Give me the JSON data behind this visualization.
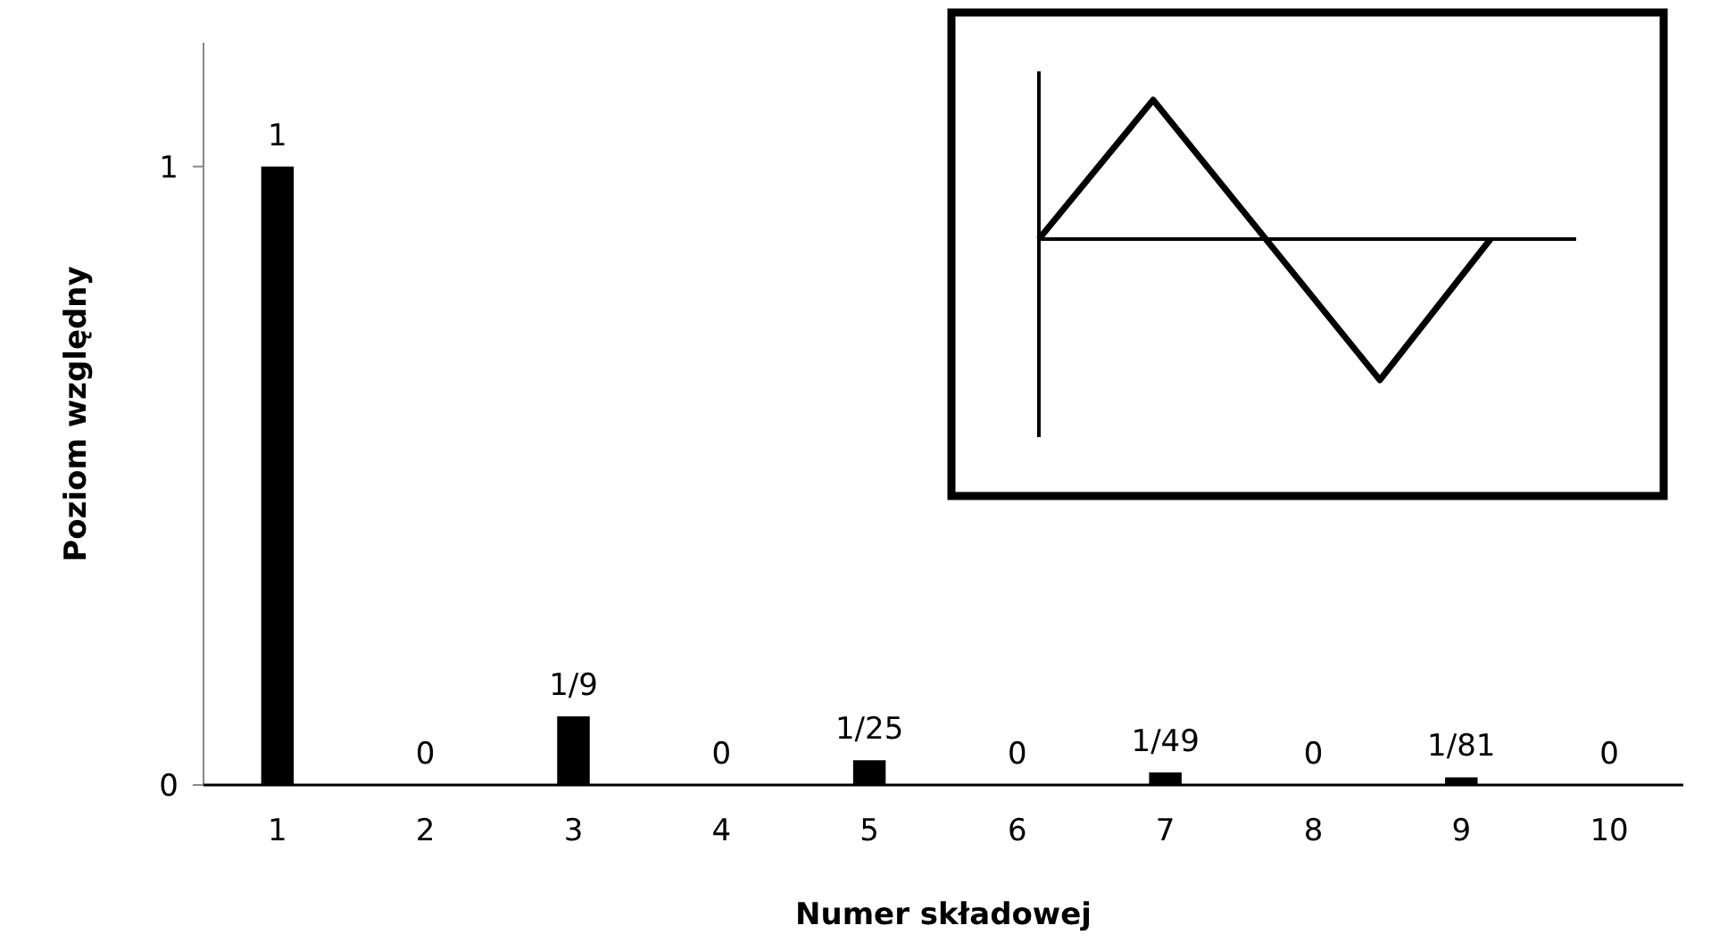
{
  "chart_data": {
    "type": "bar",
    "xlabel": "Numer składowej",
    "ylabel": "Poziom względny",
    "categories": [
      "1",
      "2",
      "3",
      "4",
      "5",
      "6",
      "7",
      "8",
      "9",
      "10"
    ],
    "values": [
      1,
      0,
      0.111,
      0,
      0.04,
      0,
      0.0204,
      0,
      0.0123,
      0
    ],
    "value_labels": [
      "1",
      "0",
      "1/9",
      "0",
      "1/25",
      "0",
      "1/49",
      "0",
      "1/81",
      "0"
    ],
    "color": "#000000",
    "ylim": [
      0,
      1.2
    ],
    "yticks": [
      0,
      1
    ],
    "grid": false
  }
}
